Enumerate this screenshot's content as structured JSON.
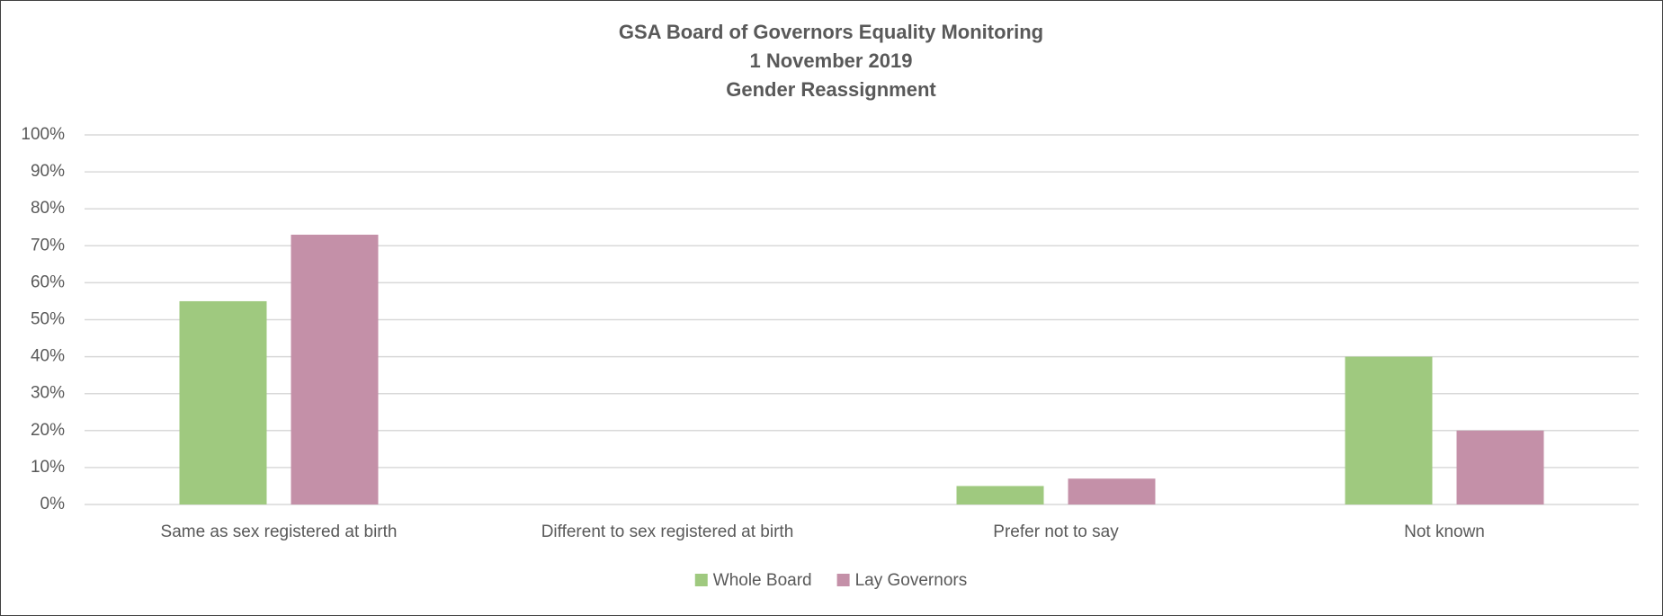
{
  "chart_data": {
    "type": "bar",
    "title": [
      "GSA Board of Governors Equality Monitoring",
      "1 November 2019",
      "Gender Reassignment"
    ],
    "categories": [
      "Same as sex registered at birth",
      "Different to sex registered at birth",
      "Prefer not to say",
      "Not known"
    ],
    "series": [
      {
        "name": "Whole Board",
        "color": "#9fc97f",
        "values": [
          55,
          0,
          5,
          40
        ]
      },
      {
        "name": "Lay Governors",
        "color": "#c490a8",
        "values": [
          73,
          0,
          7,
          20
        ]
      }
    ],
    "ylim": [
      0,
      100
    ],
    "yticks": [
      {
        "value": 0,
        "label": "0%"
      },
      {
        "value": 10,
        "label": "10%"
      },
      {
        "value": 20,
        "label": "20%"
      },
      {
        "value": 30,
        "label": "30%"
      },
      {
        "value": 40,
        "label": "40%"
      },
      {
        "value": 50,
        "label": "50%"
      },
      {
        "value": 60,
        "label": "60%"
      },
      {
        "value": 70,
        "label": "70%"
      },
      {
        "value": 80,
        "label": "80%"
      },
      {
        "value": 90,
        "label": "90%"
      },
      {
        "value": 100,
        "label": "100%"
      }
    ],
    "grid": true,
    "legend": "bottom"
  }
}
